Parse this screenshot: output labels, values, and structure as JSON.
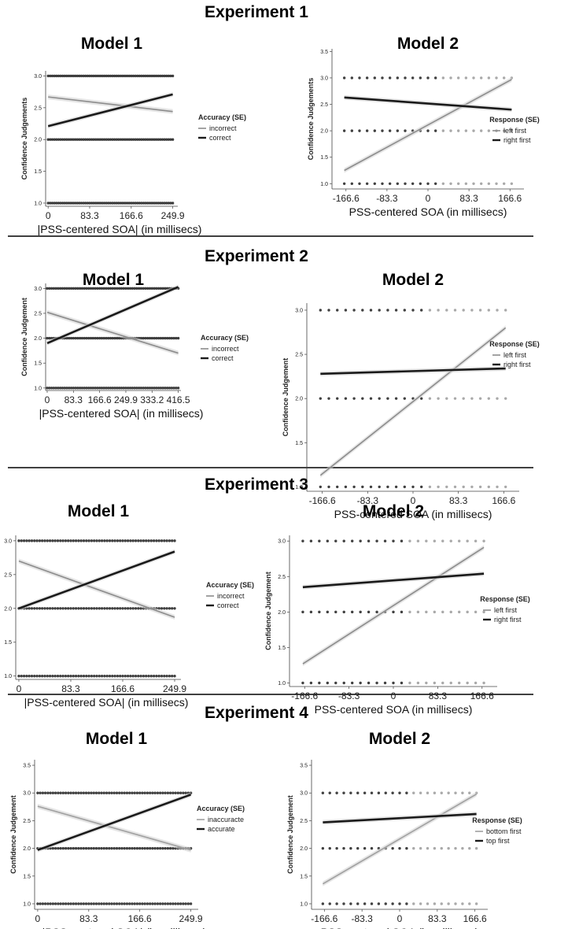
{
  "panels": [
    {
      "experiment": "Experiment 1",
      "chart_data": [
        {
          "type": "scatter",
          "title": "Model 1",
          "xlabel": "|PSS-centered SOA| (in millisecs)",
          "ylabel": "Confidence Judgements",
          "x_ticks": [
            "0",
            "83.3",
            "166.6",
            "249.9"
          ],
          "y_ticks": [
            "1.0",
            "1.5",
            "2.0",
            "2.5",
            "3.0"
          ],
          "xlim": [
            -5,
            260
          ],
          "ylim": [
            0.95,
            3.08
          ],
          "legend_title": "Accuracy (SE)",
          "legend_position": "right",
          "series": [
            {
              "name": "incorrect",
              "color": "#8c8c8c",
              "x": [
                0,
                249.9
              ],
              "y": [
                2.67,
                2.44
              ]
            },
            {
              "name": "correct",
              "color": "#1a1a1a",
              "x": [
                0,
                249.9
              ],
              "y": [
                2.21,
                2.71
              ]
            }
          ],
          "dot_levels": [
            1,
            2,
            3
          ],
          "dot_range": [
            0,
            249.9
          ]
        },
        {
          "type": "scatter",
          "title": "Model 2",
          "xlabel": "PSS-centered SOA (in millisecs)",
          "ylabel": "Confidence Judgements",
          "x_ticks": [
            "-166.6",
            "-83.3",
            "0",
            "83.3",
            "166.6"
          ],
          "y_ticks": [
            "1.0",
            "1.5",
            "2.0",
            "2.5",
            "3.0",
            "3.5"
          ],
          "xlim": [
            -195,
            195
          ],
          "ylim": [
            0.9,
            3.55
          ],
          "legend_title": "Response (SE)",
          "legend_position": "right",
          "series": [
            {
              "name": "left first",
              "color": "#8c8c8c",
              "x": [
                -170,
                170
              ],
              "y": [
                1.25,
                2.97
              ]
            },
            {
              "name": "right first",
              "color": "#1a1a1a",
              "x": [
                -170,
                170
              ],
              "y": [
                2.63,
                2.4
              ]
            }
          ],
          "dot_levels": [
            1,
            2,
            3
          ],
          "dot_range": [
            -170,
            170
          ]
        }
      ]
    },
    {
      "experiment": "Experiment 2",
      "chart_data": [
        {
          "type": "scatter",
          "title": "Model 1",
          "xlabel": "|PSS-centered SOA| (in millisecs)",
          "ylabel": "Confidence Judgement",
          "x_ticks": [
            "0",
            "83.3",
            "166.6",
            "249.9",
            "333.2",
            "416.5"
          ],
          "y_ticks": [
            "1.0",
            "1.5",
            "2.0",
            "2.5",
            "3.0"
          ],
          "xlim": [
            -5,
            425
          ],
          "ylim": [
            0.95,
            3.1
          ],
          "legend_title": "Accuracy (SE)",
          "legend_position": "right",
          "series": [
            {
              "name": "incorrect",
              "color": "#8c8c8c",
              "x": [
                0,
                416.5
              ],
              "y": [
                2.52,
                1.7
              ]
            },
            {
              "name": "correct",
              "color": "#1a1a1a",
              "x": [
                0,
                416.5
              ],
              "y": [
                1.9,
                3.03
              ]
            }
          ],
          "dot_levels": [
            1,
            2,
            3
          ],
          "dot_range": [
            0,
            416.5
          ]
        },
        {
          "type": "scatter",
          "title": "Model 2",
          "xlabel": "PSS-centered SOA (in millisecs)",
          "ylabel": "Confidence Judgement",
          "x_ticks": [
            "-166.6",
            "-83.3",
            "0",
            "83.3",
            "166.6"
          ],
          "y_ticks": [
            "1.0",
            "1.5",
            "2.0",
            "2.5",
            "3.0"
          ],
          "xlim": [
            -195,
            195
          ],
          "ylim": [
            0.95,
            3.08
          ],
          "legend_title": "Response (SE)",
          "legend_position": "right",
          "series": [
            {
              "name": "left first",
              "color": "#8c8c8c",
              "x": [
                -170,
                170
              ],
              "y": [
                1.13,
                2.8
              ]
            },
            {
              "name": "right first",
              "color": "#1a1a1a",
              "x": [
                -170,
                170
              ],
              "y": [
                2.28,
                2.34
              ]
            }
          ],
          "dot_levels": [
            1,
            2,
            3
          ],
          "dot_range": [
            -170,
            170
          ]
        }
      ]
    },
    {
      "experiment": "Experiment 3",
      "chart_data": [
        {
          "type": "scatter",
          "title": "Model 1",
          "xlabel": "|PSS-centered SOA| (in millisecs)",
          "ylabel": "Confidence Judgement",
          "x_ticks": [
            "0",
            "83.3",
            "166.6",
            "249.9"
          ],
          "y_ticks": [
            "1.0",
            "1.5",
            "2.0",
            "2.5",
            "3.0"
          ],
          "xlim": [
            -5,
            260
          ],
          "ylim": [
            0.95,
            3.08
          ],
          "legend_title": "Accuracy (SE)",
          "legend_position": "right",
          "series": [
            {
              "name": "incorrect",
              "color": "#8c8c8c",
              "x": [
                0,
                249.9
              ],
              "y": [
                2.7,
                1.87
              ]
            },
            {
              "name": "correct",
              "color": "#1a1a1a",
              "x": [
                0,
                249.9
              ],
              "y": [
                2.0,
                2.84
              ]
            }
          ],
          "dot_levels": [
            1,
            2,
            3
          ],
          "dot_range": [
            0,
            249.9
          ]
        },
        {
          "type": "scatter",
          "title": "Model 2",
          "xlabel": "PSS-centered SOA (in millisecs)",
          "ylabel": "Confidence Judgement",
          "x_ticks": [
            "-166.6",
            "-83.3",
            "0",
            "83.3",
            "166.6"
          ],
          "y_ticks": [
            "1.0",
            "1.5",
            "2.0",
            "2.5",
            "3.0"
          ],
          "xlim": [
            -195,
            195
          ],
          "ylim": [
            0.95,
            3.08
          ],
          "legend_title": "Response (SE)",
          "legend_position": "right",
          "series": [
            {
              "name": "left first",
              "color": "#8c8c8c",
              "x": [
                -170,
                170
              ],
              "y": [
                1.27,
                2.91
              ]
            },
            {
              "name": "right first",
              "color": "#1a1a1a",
              "x": [
                -170,
                170
              ],
              "y": [
                2.35,
                2.54
              ]
            }
          ],
          "dot_levels": [
            1,
            2,
            3
          ],
          "dot_range": [
            -170,
            170
          ]
        }
      ]
    },
    {
      "experiment": "Experiment 4",
      "chart_data": [
        {
          "type": "scatter",
          "title": "Model 1",
          "xlabel": "|PSS-centered SOA| (in millisecs)",
          "ylabel": "Confidence Judgement",
          "x_ticks": [
            "0",
            "83.3",
            "166.6",
            "249.9"
          ],
          "y_ticks": [
            "1.0",
            "1.5",
            "2.0",
            "2.5",
            "3.0",
            "3.5"
          ],
          "xlim": [
            -5,
            262
          ],
          "ylim": [
            0.9,
            3.6
          ],
          "legend_title": "Accuracy (SE)",
          "legend_position": "right",
          "series": [
            {
              "name": "inaccuracte",
              "color": "#a0a0a0",
              "x": [
                0,
                249.9
              ],
              "y": [
                2.76,
                1.97
              ]
            },
            {
              "name": "accurate",
              "color": "#1a1a1a",
              "x": [
                0,
                249.9
              ],
              "y": [
                1.97,
                2.97
              ]
            }
          ],
          "dot_levels": [
            1,
            2,
            3
          ],
          "dot_range": [
            0,
            249.9
          ]
        },
        {
          "type": "scatter",
          "title": "Model 2",
          "xlabel": "PSS-centered SOA (in millisecs)",
          "ylabel": "Confidence Judgement",
          "x_ticks": [
            "-166.6",
            "-83.3",
            "0",
            "83.3",
            "166.6"
          ],
          "y_ticks": [
            "1.0",
            "1.5",
            "2.0",
            "2.5",
            "3.0",
            "3.5"
          ],
          "xlim": [
            -195,
            195
          ],
          "ylim": [
            0.9,
            3.6
          ],
          "legend_title": "Response (SE)",
          "legend_position": "right",
          "series": [
            {
              "name": "bottom first",
              "color": "#a0a0a0",
              "x": [
                -170,
                170
              ],
              "y": [
                1.36,
                2.98
              ]
            },
            {
              "name": "top first",
              "color": "#1a1a1a",
              "x": [
                -170,
                170
              ],
              "y": [
                2.47,
                2.62
              ]
            }
          ],
          "dot_levels": [
            1,
            2,
            3
          ],
          "dot_range": [
            -170,
            170
          ]
        }
      ]
    }
  ]
}
